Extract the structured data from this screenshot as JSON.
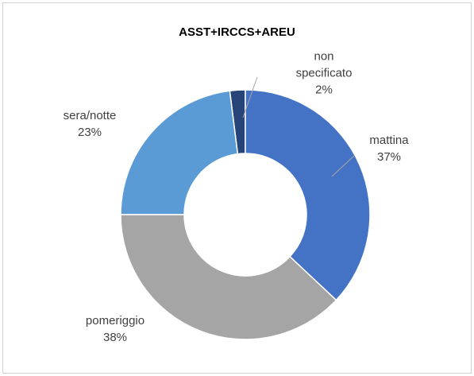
{
  "chart_data": {
    "type": "donut",
    "title": "ASST+IRCCS+AREU",
    "categories": [
      "mattina",
      "pomeriggio",
      "sera/notte",
      "non specificato"
    ],
    "values": [
      37,
      38,
      23,
      2
    ],
    "value_labels": [
      "37%",
      "38%",
      "23%",
      "2%"
    ],
    "colors": [
      "#4472c4",
      "#a5a5a5",
      "#5b9bd5",
      "#264478"
    ]
  }
}
